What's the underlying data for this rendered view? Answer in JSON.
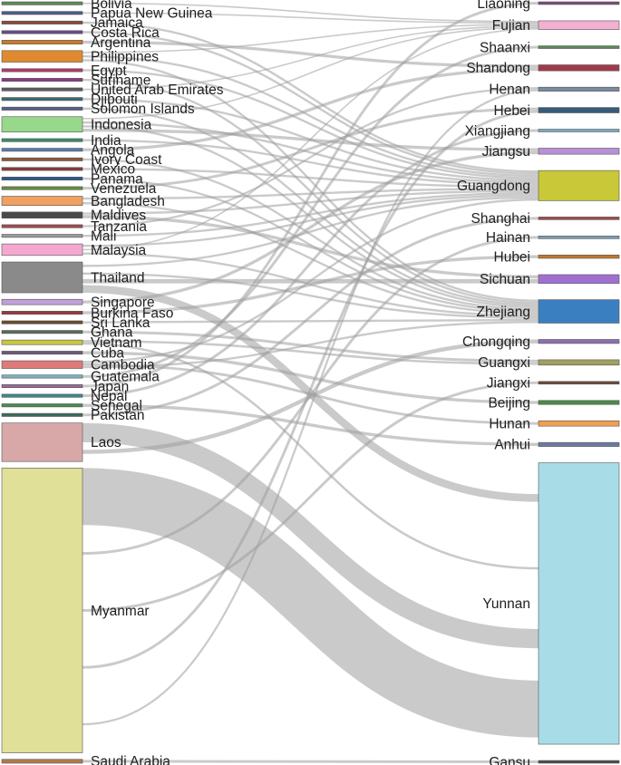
{
  "chart_data": {
    "type": "sankey",
    "title": "",
    "sources": [
      {
        "name": "Bolivia",
        "value": 0.4,
        "color": "#5d8a5a"
      },
      {
        "name": "Papua New Guinea",
        "value": 0.4,
        "color": "#4a5d8a"
      },
      {
        "name": "Jamaica",
        "value": 0.4,
        "color": "#8a4a3a"
      },
      {
        "name": "Costa Rica",
        "value": 0.4,
        "color": "#6a4a8a"
      },
      {
        "name": "Argentina",
        "value": 0.5,
        "color": "#c77a2a"
      },
      {
        "name": "Philippines",
        "value": 1.5,
        "color": "#e08a30"
      },
      {
        "name": "Egypt",
        "value": 0.4,
        "color": "#b03a6a"
      },
      {
        "name": "Suriname",
        "value": 0.4,
        "color": "#8a3a8a"
      },
      {
        "name": "United Arab Emirates",
        "value": 0.4,
        "color": "#5a5a5a"
      },
      {
        "name": "Djibouti",
        "value": 0.4,
        "color": "#3a6a6a"
      },
      {
        "name": "Solomon Islands",
        "value": 0.4,
        "color": "#5a5a8a"
      },
      {
        "name": "Indonesia",
        "value": 2.0,
        "color": "#98d88a"
      },
      {
        "name": "India",
        "value": 0.4,
        "color": "#3a8a6a"
      },
      {
        "name": "Angola",
        "value": 0.4,
        "color": "#5a7ab0"
      },
      {
        "name": "Ivory Coast",
        "value": 0.4,
        "color": "#8a5a3a"
      },
      {
        "name": "Mexico",
        "value": 0.4,
        "color": "#8a3a3a"
      },
      {
        "name": "Panama",
        "value": 0.4,
        "color": "#2a5a8a"
      },
      {
        "name": "Venezuela",
        "value": 0.4,
        "color": "#6a8a3a"
      },
      {
        "name": "Bangladesh",
        "value": 1.2,
        "color": "#f0a060"
      },
      {
        "name": "Maldives",
        "value": 0.8,
        "color": "#4a4a4a"
      },
      {
        "name": "Tanzania",
        "value": 0.4,
        "color": "#a04a4a"
      },
      {
        "name": "Mali",
        "value": 0.4,
        "color": "#9a9a9a"
      },
      {
        "name": "Malaysia",
        "value": 1.5,
        "color": "#f4a8d0"
      },
      {
        "name": "Thailand",
        "value": 4.0,
        "color": "#8a8a8a"
      },
      {
        "name": "Singapore",
        "value": 0.7,
        "color": "#c0a0d8"
      },
      {
        "name": "Burkina Faso",
        "value": 0.4,
        "color": "#9a3a3a"
      },
      {
        "name": "Sri Lanka",
        "value": 0.4,
        "color": "#6a4a2a"
      },
      {
        "name": "Ghana",
        "value": 0.4,
        "color": "#5a6a5a"
      },
      {
        "name": "Vietnam",
        "value": 0.6,
        "color": "#c8c840"
      },
      {
        "name": "Cuba",
        "value": 0.4,
        "color": "#6a5a7a"
      },
      {
        "name": "Cambodia",
        "value": 1.0,
        "color": "#e07a7a"
      },
      {
        "name": "Guatemala",
        "value": 0.4,
        "color": "#7ab0c0"
      },
      {
        "name": "Japan",
        "value": 0.4,
        "color": "#9a6a9a"
      },
      {
        "name": "Nepal",
        "value": 0.4,
        "color": "#3a8a8a"
      },
      {
        "name": "Senegal",
        "value": 0.4,
        "color": "#4a8a4a"
      },
      {
        "name": "Pakistan",
        "value": 0.4,
        "color": "#3a6a5a"
      },
      {
        "name": "Laos",
        "value": 5.0,
        "color": "#d8a8a8"
      },
      {
        "name": "Myanmar",
        "value": 37.0,
        "color": "#e0e098"
      },
      {
        "name": "Saudi Arabia",
        "value": 0.5,
        "color": "#b07a4a"
      }
    ],
    "targets": [
      {
        "name": "Liaoning",
        "value": 0.4,
        "color": "#7a4a7a"
      },
      {
        "name": "Fujian",
        "value": 1.3,
        "color": "#f4b0d0"
      },
      {
        "name": "Shaanxi",
        "value": 0.4,
        "color": "#5a8a5a"
      },
      {
        "name": "Shandong",
        "value": 0.9,
        "color": "#a03a4a"
      },
      {
        "name": "Henan",
        "value": 0.6,
        "color": "#7a8aa0"
      },
      {
        "name": "Hebei",
        "value": 0.8,
        "color": "#3a5a7a"
      },
      {
        "name": "Xiangjiang",
        "value": 0.4,
        "color": "#7aa8c0"
      },
      {
        "name": "Jiangsu",
        "value": 0.9,
        "color": "#b890d8"
      },
      {
        "name": "Guangdong",
        "value": 4.5,
        "color": "#c8c838"
      },
      {
        "name": "Shanghai",
        "value": 0.4,
        "color": "#a04a4a"
      },
      {
        "name": "Hainan",
        "value": 0.4,
        "color": "#7a9ab0"
      },
      {
        "name": "Hubei",
        "value": 0.5,
        "color": "#c07a30"
      },
      {
        "name": "Sichuan",
        "value": 1.3,
        "color": "#a070d0"
      },
      {
        "name": "Zhejiang",
        "value": 3.5,
        "color": "#3a80c0"
      },
      {
        "name": "Chongqing",
        "value": 0.6,
        "color": "#8a70b0"
      },
      {
        "name": "Guangxi",
        "value": 0.8,
        "color": "#a0a060"
      },
      {
        "name": "Jiangxi",
        "value": 0.4,
        "color": "#6a4a3a"
      },
      {
        "name": "Beijing",
        "value": 0.6,
        "color": "#4a8a4a"
      },
      {
        "name": "Hunan",
        "value": 0.8,
        "color": "#f0a050"
      },
      {
        "name": "Anhui",
        "value": 0.6,
        "color": "#6a7aa0"
      },
      {
        "name": "Yunnan",
        "value": 42.0,
        "color": "#a8dde8"
      },
      {
        "name": "Gansu",
        "value": 0.4,
        "color": "#4a4a4a"
      }
    ],
    "links": [
      [
        "Bolivia",
        "Fujian"
      ],
      [
        "Papua New Guinea",
        "Fujian"
      ],
      [
        "Jamaica",
        "Guangdong"
      ],
      [
        "Costa Rica",
        "Guangdong"
      ],
      [
        "Argentina",
        "Shandong"
      ],
      [
        "Philippines",
        "Fujian"
      ],
      [
        "Philippines",
        "Guangdong"
      ],
      [
        "Philippines",
        "Zhejiang"
      ],
      [
        "Egypt",
        "Guangdong"
      ],
      [
        "Suriname",
        "Zhejiang"
      ],
      [
        "United Arab Emirates",
        "Fujian"
      ],
      [
        "Djibouti",
        "Guangdong"
      ],
      [
        "Solomon Islands",
        "Zhejiang"
      ],
      [
        "Indonesia",
        "Fujian"
      ],
      [
        "Indonesia",
        "Guangdong"
      ],
      [
        "Indonesia",
        "Zhejiang"
      ],
      [
        "Indonesia",
        "Jiangsu"
      ],
      [
        "India",
        "Guangdong"
      ],
      [
        "Angola",
        "Shandong"
      ],
      [
        "Ivory Coast",
        "Zhejiang"
      ],
      [
        "Mexico",
        "Guangdong"
      ],
      [
        "Panama",
        "Zhejiang"
      ],
      [
        "Venezuela",
        "Hebei"
      ],
      [
        "Bangladesh",
        "Guangdong"
      ],
      [
        "Bangladesh",
        "Zhejiang"
      ],
      [
        "Maldives",
        "Guangdong"
      ],
      [
        "Maldives",
        "Sichuan"
      ],
      [
        "Tanzania",
        "Henan"
      ],
      [
        "Mali",
        "Guangdong"
      ],
      [
        "Malaysia",
        "Guangdong"
      ],
      [
        "Malaysia",
        "Fujian"
      ],
      [
        "Malaysia",
        "Zhejiang"
      ],
      [
        "Thailand",
        "Guangdong"
      ],
      [
        "Thailand",
        "Zhejiang"
      ],
      [
        "Thailand",
        "Sichuan"
      ],
      [
        "Thailand",
        "Yunnan"
      ],
      [
        "Singapore",
        "Jiangsu"
      ],
      [
        "Burkina Faso",
        "Hubei"
      ],
      [
        "Sri Lanka",
        "Zhejiang"
      ],
      [
        "Ghana",
        "Guangxi"
      ],
      [
        "Vietnam",
        "Guangxi"
      ],
      [
        "Vietnam",
        "Yunnan"
      ],
      [
        "Cuba",
        "Beijing"
      ],
      [
        "Cambodia",
        "Guangdong"
      ],
      [
        "Cambodia",
        "Hunan"
      ],
      [
        "Cambodia",
        "Zhejiang"
      ],
      [
        "Guatemala",
        "Shaanxi"
      ],
      [
        "Japan",
        "Liaoning"
      ],
      [
        "Nepal",
        "Xiangjiang"
      ],
      [
        "Senegal",
        "Anhui"
      ],
      [
        "Pakistan",
        "Shanghai"
      ],
      [
        "Laos",
        "Yunnan"
      ],
      [
        "Laos",
        "Chongqing"
      ],
      [
        "Myanmar",
        "Yunnan"
      ],
      [
        "Myanmar",
        "Hainan"
      ],
      [
        "Myanmar",
        "Jiangxi"
      ],
      [
        "Myanmar",
        "Hebei"
      ],
      [
        "Myanmar",
        "Henan"
      ],
      [
        "Saudi Arabia",
        "Gansu"
      ]
    ]
  }
}
